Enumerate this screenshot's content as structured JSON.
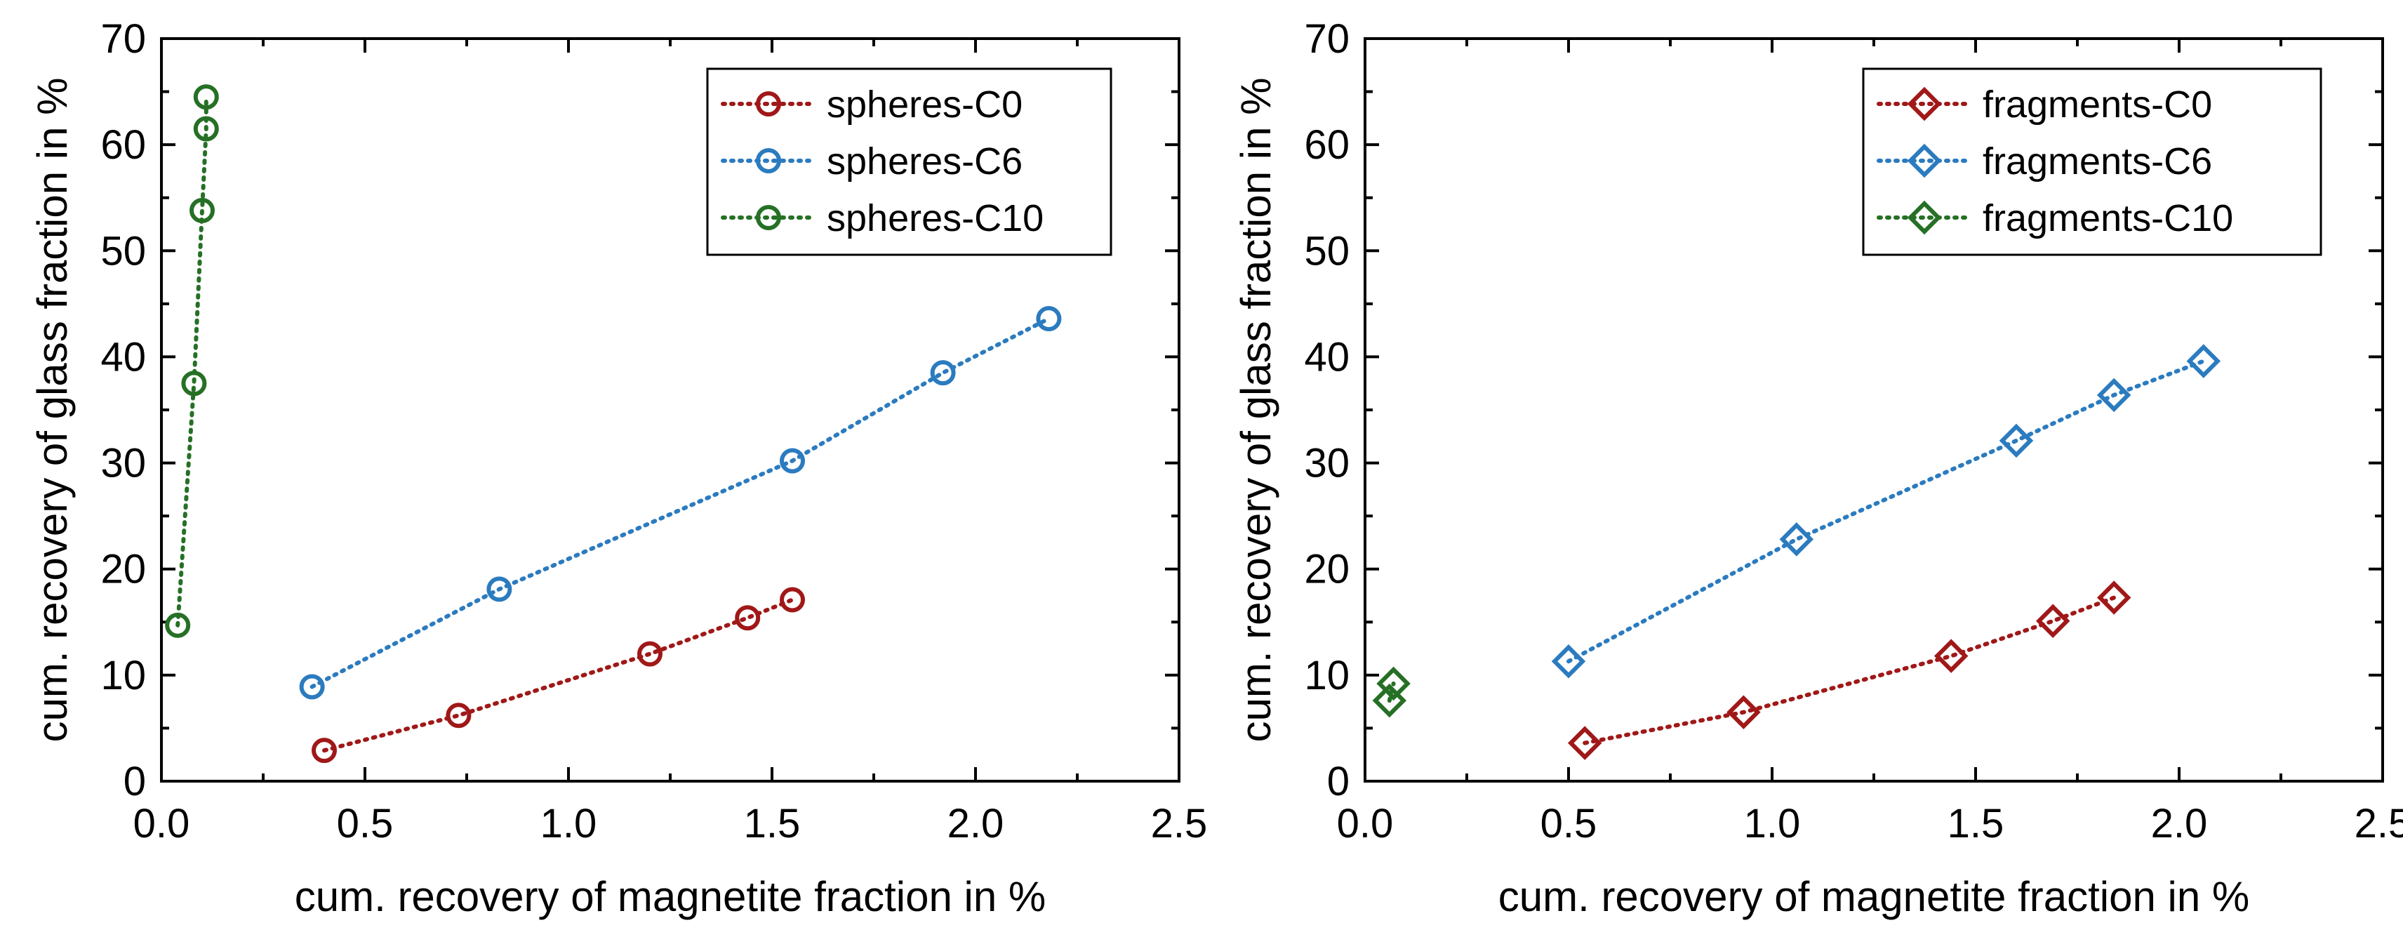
{
  "chart_data": [
    {
      "type": "scatter",
      "title": "",
      "xlabel": "cum. recovery of magnetite fraction in %",
      "ylabel": "cum. recovery of glass fraction in %",
      "xlim": [
        0,
        2.5
      ],
      "ylim": [
        0,
        70
      ],
      "xticks": [
        "0.0",
        "0.5",
        "1.0",
        "1.5",
        "2.0",
        "2.5"
      ],
      "yticks": [
        "0",
        "10",
        "20",
        "30",
        "40",
        "50",
        "60",
        "70"
      ],
      "grid": false,
      "legend_position": "top-right",
      "marker": "circle",
      "line_style": "dotted",
      "series": [
        {
          "name": "spheres-C0",
          "color": "#a01818",
          "x": [
            0.4,
            0.73,
            1.2,
            1.44,
            1.55
          ],
          "y": [
            2.9,
            6.2,
            12.0,
            15.4,
            17.1
          ]
        },
        {
          "name": "spheres-C6",
          "color": "#2b7bbf",
          "x": [
            0.37,
            0.83,
            1.55,
            1.92,
            2.18
          ],
          "y": [
            8.9,
            18.1,
            30.2,
            38.5,
            43.6
          ]
        },
        {
          "name": "spheres-C10",
          "color": "#267026",
          "x": [
            0.04,
            0.08,
            0.1,
            0.11,
            0.11
          ],
          "y": [
            14.7,
            37.5,
            53.8,
            61.5,
            64.5
          ]
        }
      ]
    },
    {
      "type": "scatter",
      "title": "",
      "xlabel": "cum. recovery of magnetite fraction in %",
      "ylabel": "cum. recovery of glass fraction in %",
      "xlim": [
        0,
        2.5
      ],
      "ylim": [
        0,
        70
      ],
      "xticks": [
        "0.0",
        "0.5",
        "1.0",
        "1.5",
        "2.0",
        "2.5"
      ],
      "yticks": [
        "0",
        "10",
        "20",
        "30",
        "40",
        "50",
        "60",
        "70"
      ],
      "grid": false,
      "legend_position": "top-right",
      "marker": "diamond",
      "line_style": "dotted",
      "series": [
        {
          "name": "fragments-C0",
          "color": "#a01818",
          "x": [
            0.54,
            0.93,
            1.44,
            1.69,
            1.84
          ],
          "y": [
            3.6,
            6.5,
            11.8,
            15.1,
            17.3
          ]
        },
        {
          "name": "fragments-C6",
          "color": "#2b7bbf",
          "x": [
            0.5,
            1.06,
            1.6,
            1.84,
            2.06
          ],
          "y": [
            11.3,
            22.8,
            32.1,
            36.4,
            39.6
          ]
        },
        {
          "name": "fragments-C10",
          "color": "#267026",
          "x": [
            0.06,
            0.07
          ],
          "y": [
            7.6,
            9.2
          ]
        }
      ]
    }
  ]
}
